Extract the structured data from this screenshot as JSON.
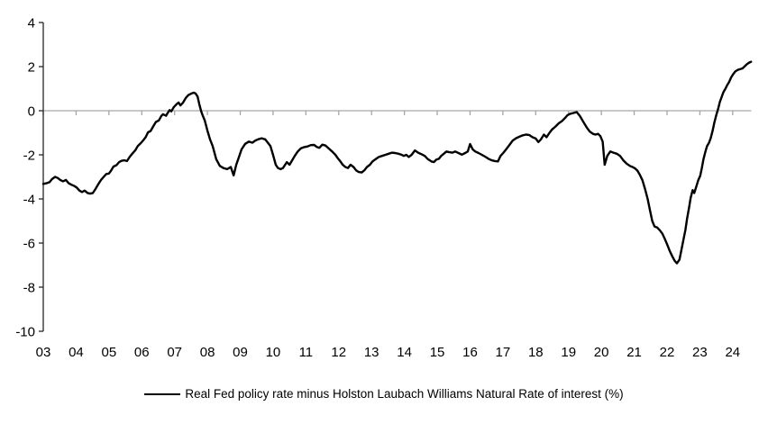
{
  "chart_data": {
    "type": "line",
    "title": "",
    "xlabel": "",
    "ylabel": "",
    "xlim": [
      2003,
      2024.62
    ],
    "ylim": [
      -10,
      4
    ],
    "grid": "zero-line-only",
    "legend_position": "bottom-center",
    "y_ticks": [
      4,
      2,
      0,
      -2,
      -4,
      -6,
      -8,
      -10
    ],
    "x_tick_years": [
      2003,
      2004,
      2005,
      2006,
      2007,
      2008,
      2009,
      2010,
      2011,
      2012,
      2013,
      2014,
      2015,
      2016,
      2017,
      2018,
      2019,
      2020,
      2021,
      2022,
      2023,
      2024
    ],
    "x_tick_labels": [
      "03",
      "04",
      "05",
      "06",
      "07",
      "08",
      "09",
      "10",
      "11",
      "12",
      "13",
      "14",
      "15",
      "16",
      "17",
      "18",
      "19",
      "20",
      "21",
      "22",
      "23",
      "24"
    ],
    "colors": {
      "line": "#000000",
      "zero_line": "#a6a6a6",
      "axis": "#262626",
      "text": "#000000",
      "background": "#ffffff"
    },
    "series": [
      {
        "name": "Real Fed policy rate minus Holston Laubach Williams Natural Rate of interest (%)",
        "points": [
          [
            2003.0,
            -3.32
          ],
          [
            2003.11,
            -3.28
          ],
          [
            2003.19,
            -3.24
          ],
          [
            2003.27,
            -3.1
          ],
          [
            2003.36,
            -3.0
          ],
          [
            2003.44,
            -3.05
          ],
          [
            2003.52,
            -3.14
          ],
          [
            2003.6,
            -3.2
          ],
          [
            2003.69,
            -3.14
          ],
          [
            2003.77,
            -3.28
          ],
          [
            2003.85,
            -3.35
          ],
          [
            2003.93,
            -3.4
          ],
          [
            2004.02,
            -3.48
          ],
          [
            2004.1,
            -3.62
          ],
          [
            2004.18,
            -3.69
          ],
          [
            2004.26,
            -3.62
          ],
          [
            2004.35,
            -3.73
          ],
          [
            2004.43,
            -3.76
          ],
          [
            2004.51,
            -3.73
          ],
          [
            2004.59,
            -3.55
          ],
          [
            2004.68,
            -3.32
          ],
          [
            2004.76,
            -3.14
          ],
          [
            2004.84,
            -3.0
          ],
          [
            2004.92,
            -2.87
          ],
          [
            2005.0,
            -2.85
          ],
          [
            2005.06,
            -2.73
          ],
          [
            2005.14,
            -2.53
          ],
          [
            2005.23,
            -2.47
          ],
          [
            2005.31,
            -2.33
          ],
          [
            2005.39,
            -2.27
          ],
          [
            2005.47,
            -2.25
          ],
          [
            2005.55,
            -2.28
          ],
          [
            2005.63,
            -2.1
          ],
          [
            2005.72,
            -1.93
          ],
          [
            2005.8,
            -1.8
          ],
          [
            2005.88,
            -1.6
          ],
          [
            2005.97,
            -1.47
          ],
          [
            2006.05,
            -1.33
          ],
          [
            2006.12,
            -1.2
          ],
          [
            2006.19,
            -0.98
          ],
          [
            2006.27,
            -0.92
          ],
          [
            2006.35,
            -0.71
          ],
          [
            2006.43,
            -0.51
          ],
          [
            2006.52,
            -0.44
          ],
          [
            2006.6,
            -0.23
          ],
          [
            2006.65,
            -0.16
          ],
          [
            2006.74,
            -0.23
          ],
          [
            2006.79,
            -0.1
          ],
          [
            2006.85,
            0.03
          ],
          [
            2006.9,
            -0.03
          ],
          [
            2006.98,
            0.17
          ],
          [
            2007.07,
            0.31
          ],
          [
            2007.12,
            0.37
          ],
          [
            2007.18,
            0.24
          ],
          [
            2007.26,
            0.37
          ],
          [
            2007.34,
            0.58
          ],
          [
            2007.42,
            0.71
          ],
          [
            2007.51,
            0.78
          ],
          [
            2007.59,
            0.82
          ],
          [
            2007.64,
            0.78
          ],
          [
            2007.7,
            0.64
          ],
          [
            2007.75,
            0.31
          ],
          [
            2007.81,
            -0.03
          ],
          [
            2007.86,
            -0.23
          ],
          [
            2007.92,
            -0.45
          ],
          [
            2008.0,
            -0.9
          ],
          [
            2008.08,
            -1.3
          ],
          [
            2008.16,
            -1.6
          ],
          [
            2008.27,
            -2.2
          ],
          [
            2008.38,
            -2.5
          ],
          [
            2008.49,
            -2.6
          ],
          [
            2008.6,
            -2.65
          ],
          [
            2008.71,
            -2.55
          ],
          [
            2008.8,
            -2.93
          ],
          [
            2008.88,
            -2.45
          ],
          [
            2008.96,
            -2.1
          ],
          [
            2009.04,
            -1.75
          ],
          [
            2009.15,
            -1.5
          ],
          [
            2009.26,
            -1.4
          ],
          [
            2009.37,
            -1.45
          ],
          [
            2009.46,
            -1.35
          ],
          [
            2009.54,
            -1.3
          ],
          [
            2009.65,
            -1.25
          ],
          [
            2009.76,
            -1.3
          ],
          [
            2009.84,
            -1.45
          ],
          [
            2009.92,
            -1.6
          ],
          [
            2010.0,
            -2.0
          ],
          [
            2010.08,
            -2.45
          ],
          [
            2010.15,
            -2.6
          ],
          [
            2010.23,
            -2.65
          ],
          [
            2010.3,
            -2.6
          ],
          [
            2010.42,
            -2.33
          ],
          [
            2010.5,
            -2.45
          ],
          [
            2010.58,
            -2.25
          ],
          [
            2010.66,
            -2.05
          ],
          [
            2010.75,
            -1.85
          ],
          [
            2010.85,
            -1.7
          ],
          [
            2010.95,
            -1.65
          ],
          [
            2011.05,
            -1.62
          ],
          [
            2011.15,
            -1.56
          ],
          [
            2011.25,
            -1.55
          ],
          [
            2011.33,
            -1.64
          ],
          [
            2011.41,
            -1.68
          ],
          [
            2011.5,
            -1.54
          ],
          [
            2011.6,
            -1.58
          ],
          [
            2011.7,
            -1.72
          ],
          [
            2011.8,
            -1.85
          ],
          [
            2011.9,
            -2.0
          ],
          [
            2011.97,
            -2.15
          ],
          [
            2012.05,
            -2.3
          ],
          [
            2012.12,
            -2.45
          ],
          [
            2012.2,
            -2.55
          ],
          [
            2012.28,
            -2.6
          ],
          [
            2012.36,
            -2.45
          ],
          [
            2012.45,
            -2.55
          ],
          [
            2012.53,
            -2.7
          ],
          [
            2012.61,
            -2.78
          ],
          [
            2012.7,
            -2.8
          ],
          [
            2012.78,
            -2.7
          ],
          [
            2012.86,
            -2.55
          ],
          [
            2012.95,
            -2.45
          ],
          [
            2013.03,
            -2.3
          ],
          [
            2013.12,
            -2.2
          ],
          [
            2013.22,
            -2.1
          ],
          [
            2013.32,
            -2.05
          ],
          [
            2013.42,
            -2.0
          ],
          [
            2013.52,
            -1.95
          ],
          [
            2013.62,
            -1.9
          ],
          [
            2013.72,
            -1.92
          ],
          [
            2013.82,
            -1.95
          ],
          [
            2013.92,
            -2.0
          ],
          [
            2013.98,
            -2.05
          ],
          [
            2014.06,
            -2.0
          ],
          [
            2014.13,
            -2.1
          ],
          [
            2014.22,
            -2.0
          ],
          [
            2014.32,
            -1.8
          ],
          [
            2014.42,
            -1.9
          ],
          [
            2014.52,
            -1.97
          ],
          [
            2014.62,
            -2.05
          ],
          [
            2014.72,
            -2.2
          ],
          [
            2014.82,
            -2.3
          ],
          [
            2014.9,
            -2.33
          ],
          [
            2014.97,
            -2.22
          ],
          [
            2015.05,
            -2.18
          ],
          [
            2015.12,
            -2.05
          ],
          [
            2015.2,
            -1.95
          ],
          [
            2015.28,
            -1.85
          ],
          [
            2015.37,
            -1.88
          ],
          [
            2015.46,
            -1.9
          ],
          [
            2015.55,
            -1.85
          ],
          [
            2015.65,
            -1.92
          ],
          [
            2015.75,
            -1.99
          ],
          [
            2015.85,
            -1.92
          ],
          [
            2015.93,
            -1.85
          ],
          [
            2016.0,
            -1.51
          ],
          [
            2016.08,
            -1.75
          ],
          [
            2016.16,
            -1.85
          ],
          [
            2016.26,
            -1.92
          ],
          [
            2016.36,
            -2.0
          ],
          [
            2016.46,
            -2.08
          ],
          [
            2016.56,
            -2.18
          ],
          [
            2016.66,
            -2.25
          ],
          [
            2016.76,
            -2.28
          ],
          [
            2016.85,
            -2.3
          ],
          [
            2016.93,
            -2.05
          ],
          [
            2017.01,
            -1.92
          ],
          [
            2017.1,
            -1.75
          ],
          [
            2017.2,
            -1.55
          ],
          [
            2017.3,
            -1.35
          ],
          [
            2017.4,
            -1.25
          ],
          [
            2017.5,
            -1.18
          ],
          [
            2017.6,
            -1.12
          ],
          [
            2017.7,
            -1.08
          ],
          [
            2017.8,
            -1.1
          ],
          [
            2017.9,
            -1.2
          ],
          [
            2018.0,
            -1.26
          ],
          [
            2018.08,
            -1.42
          ],
          [
            2018.16,
            -1.3
          ],
          [
            2018.25,
            -1.08
          ],
          [
            2018.33,
            -1.2
          ],
          [
            2018.42,
            -1.0
          ],
          [
            2018.5,
            -0.85
          ],
          [
            2018.6,
            -0.72
          ],
          [
            2018.7,
            -0.57
          ],
          [
            2018.8,
            -0.47
          ],
          [
            2018.9,
            -0.32
          ],
          [
            2018.97,
            -0.2
          ],
          [
            2019.05,
            -0.14
          ],
          [
            2019.15,
            -0.1
          ],
          [
            2019.25,
            -0.06
          ],
          [
            2019.35,
            -0.25
          ],
          [
            2019.45,
            -0.5
          ],
          [
            2019.55,
            -0.75
          ],
          [
            2019.65,
            -0.95
          ],
          [
            2019.75,
            -1.05
          ],
          [
            2019.82,
            -1.08
          ],
          [
            2019.9,
            -1.05
          ],
          [
            2019.97,
            -1.15
          ],
          [
            2020.04,
            -1.4
          ],
          [
            2020.1,
            -2.45
          ],
          [
            2020.18,
            -2.05
          ],
          [
            2020.27,
            -1.85
          ],
          [
            2020.37,
            -1.9
          ],
          [
            2020.47,
            -1.95
          ],
          [
            2020.57,
            -2.05
          ],
          [
            2020.67,
            -2.25
          ],
          [
            2020.77,
            -2.4
          ],
          [
            2020.87,
            -2.5
          ],
          [
            2020.95,
            -2.55
          ],
          [
            2021.03,
            -2.62
          ],
          [
            2021.1,
            -2.72
          ],
          [
            2021.17,
            -2.9
          ],
          [
            2021.25,
            -3.15
          ],
          [
            2021.33,
            -3.55
          ],
          [
            2021.41,
            -4.0
          ],
          [
            2021.48,
            -4.5
          ],
          [
            2021.55,
            -5.0
          ],
          [
            2021.62,
            -5.25
          ],
          [
            2021.7,
            -5.3
          ],
          [
            2021.78,
            -5.42
          ],
          [
            2021.86,
            -5.58
          ],
          [
            2021.93,
            -5.8
          ],
          [
            2022.0,
            -6.05
          ],
          [
            2022.08,
            -6.35
          ],
          [
            2022.16,
            -6.6
          ],
          [
            2022.23,
            -6.8
          ],
          [
            2022.3,
            -6.92
          ],
          [
            2022.38,
            -6.75
          ],
          [
            2022.44,
            -6.3
          ],
          [
            2022.5,
            -5.85
          ],
          [
            2022.56,
            -5.4
          ],
          [
            2022.61,
            -4.9
          ],
          [
            2022.67,
            -4.4
          ],
          [
            2022.72,
            -3.95
          ],
          [
            2022.78,
            -3.6
          ],
          [
            2022.83,
            -3.73
          ],
          [
            2022.89,
            -3.45
          ],
          [
            2022.95,
            -3.15
          ],
          [
            2023.01,
            -2.95
          ],
          [
            2023.06,
            -2.6
          ],
          [
            2023.11,
            -2.2
          ],
          [
            2023.17,
            -1.85
          ],
          [
            2023.22,
            -1.6
          ],
          [
            2023.28,
            -1.45
          ],
          [
            2023.33,
            -1.25
          ],
          [
            2023.39,
            -0.9
          ],
          [
            2023.44,
            -0.55
          ],
          [
            2023.5,
            -0.2
          ],
          [
            2023.56,
            0.1
          ],
          [
            2023.61,
            0.4
          ],
          [
            2023.67,
            0.65
          ],
          [
            2023.72,
            0.85
          ],
          [
            2023.78,
            1.0
          ],
          [
            2023.83,
            1.15
          ],
          [
            2023.89,
            1.3
          ],
          [
            2023.95,
            1.5
          ],
          [
            2024.01,
            1.65
          ],
          [
            2024.08,
            1.78
          ],
          [
            2024.15,
            1.85
          ],
          [
            2024.22,
            1.88
          ],
          [
            2024.3,
            1.92
          ],
          [
            2024.37,
            2.02
          ],
          [
            2024.44,
            2.12
          ],
          [
            2024.5,
            2.18
          ],
          [
            2024.56,
            2.22
          ]
        ]
      }
    ]
  },
  "legend": {
    "label": "Real Fed policy rate minus Holston Laubach Williams Natural Rate of interest (%)"
  }
}
